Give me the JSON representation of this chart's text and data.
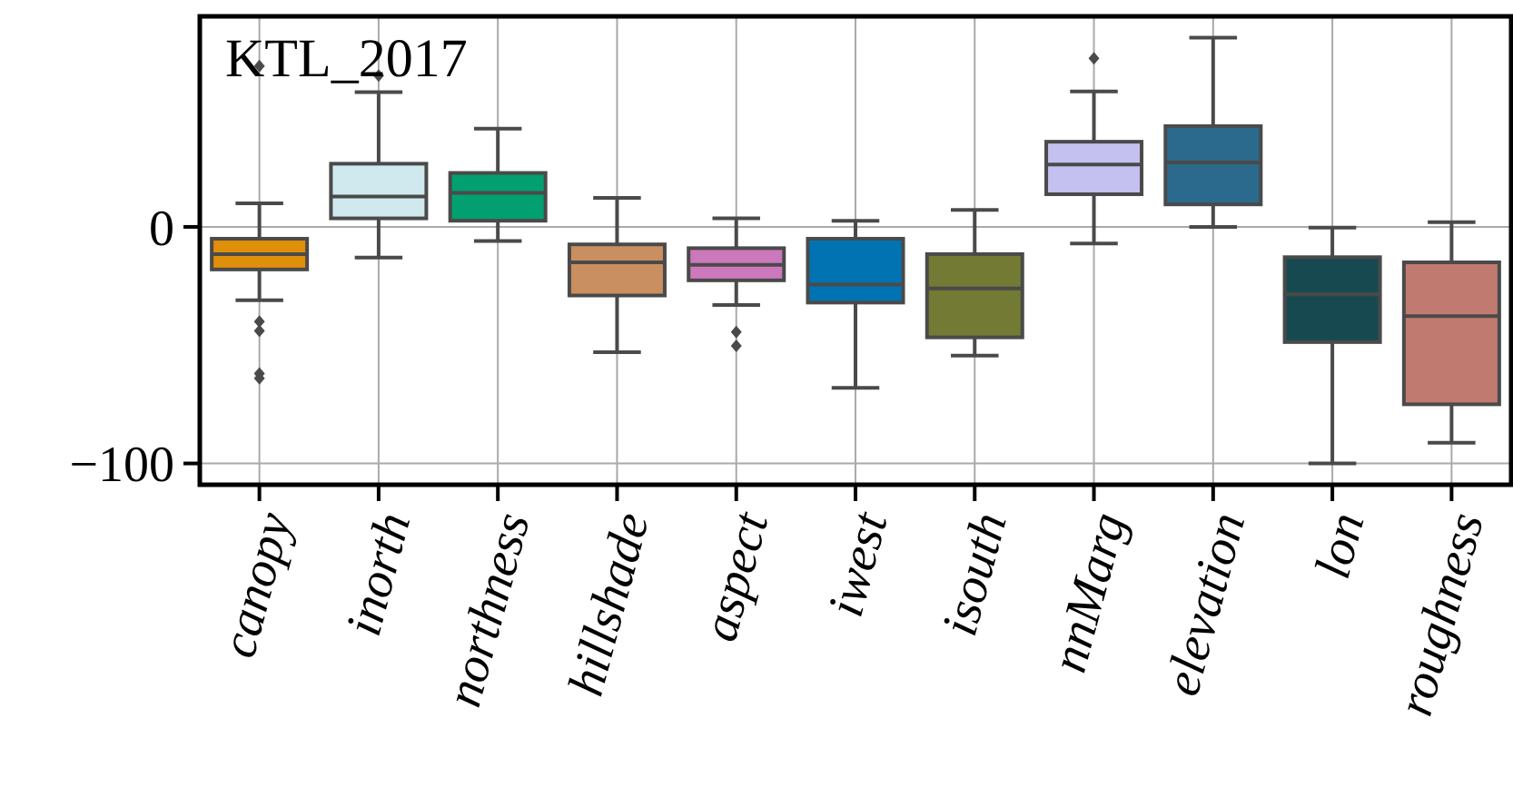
{
  "chart_data": {
    "type": "box",
    "title": "KTL_2017",
    "categories": [
      "canopy",
      "inorth",
      "northness",
      "hillshade",
      "aspect",
      "iwest",
      "isouth",
      "nnMarg",
      "elevation",
      "lon",
      "roughness"
    ],
    "colors": [
      "#e08f0a",
      "#d0e9ee",
      "#02a070",
      "#c98f60",
      "#cc78bc",
      "#0173b2",
      "#727a33",
      "#c4c0f0",
      "#2b6a8c",
      "#174a50",
      "#c07a70"
    ],
    "boxes": [
      {
        "low": -31,
        "q1": -18,
        "median": -11.5,
        "q3": -5,
        "high": 10,
        "outliers": [
          68,
          -40,
          -44,
          -62,
          -64
        ]
      },
      {
        "low": -13,
        "q1": 3.6,
        "median": 12.8,
        "q3": 26.7,
        "high": 57,
        "outliers": [
          64
        ]
      },
      {
        "low": -6,
        "q1": 2.6,
        "median": 14.4,
        "q3": 22.8,
        "high": 41.5
      },
      {
        "low": -53,
        "q1": -29,
        "median": -15,
        "q3": -7.4,
        "high": 12.3
      },
      {
        "low": -33,
        "q1": -22.6,
        "median": -16,
        "q3": -9,
        "high": 3.6,
        "outliers": [
          -44.4,
          -50.3
        ]
      },
      {
        "low": -68,
        "q1": -32,
        "median": -24.4,
        "q3": -5,
        "high": 2.6
      },
      {
        "low": -54.4,
        "q1": -46.7,
        "median": -26,
        "q3": -11.5,
        "high": 7.2
      },
      {
        "low": -7,
        "q1": 13.8,
        "median": 26.4,
        "q3": 36,
        "high": 57.2,
        "outliers": [
          71.3
        ]
      },
      {
        "low": 0,
        "q1": 9.5,
        "median": 27.2,
        "q3": 42.6,
        "high": 80
      },
      {
        "low": -100,
        "q1": -48.7,
        "median": -28.5,
        "q3": -12.8,
        "high": -0.3
      },
      {
        "low": -91.3,
        "q1": -75,
        "median": -37.7,
        "q3": -15,
        "high": 2
      }
    ],
    "ylim": [
      -109,
      89
    ],
    "yticks": [
      0,
      {
        "value": -100,
        "label": "−100"
      }
    ],
    "grid": true
  }
}
